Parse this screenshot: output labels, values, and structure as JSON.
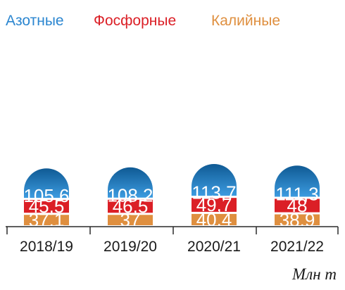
{
  "chart_data": {
    "type": "bar",
    "stacked": true,
    "categories": [
      "2018/19",
      "2019/20",
      "2020/21",
      "2021/22"
    ],
    "series": [
      {
        "name": "Калийные",
        "values": [
          37.1,
          37,
          40.4,
          38.9
        ],
        "labels": [
          "37,1",
          "37",
          "40,4",
          "38,9"
        ],
        "color": "#df8f3f"
      },
      {
        "name": "Фосфорные",
        "values": [
          45.5,
          46.5,
          49.7,
          48
        ],
        "labels": [
          "45,5",
          "46,5",
          "49,7",
          "48"
        ],
        "color": "#db1f26"
      },
      {
        "name": "Азотные",
        "values": [
          105.6,
          108.2,
          113.7,
          111.3
        ],
        "labels": [
          "105,6",
          "108,2",
          "113,7",
          "111,3"
        ],
        "color": "#2b86d0"
      }
    ],
    "legend": [
      "Азотные",
      "Фосфорные",
      "Калийные"
    ],
    "legend_placement": "top",
    "unit": "Млн т",
    "title": "",
    "xlabel": "",
    "ylabel": "",
    "grid": false
  },
  "colors": {
    "nitrogen_legend": "#2b86d0",
    "phosphate_legend": "#db1f26",
    "potash_legend": "#df8f3f",
    "nitrogen_top": "#0f5a94",
    "nitrogen_bottom": "#3c9be0",
    "axis": "#2a2a2a"
  }
}
